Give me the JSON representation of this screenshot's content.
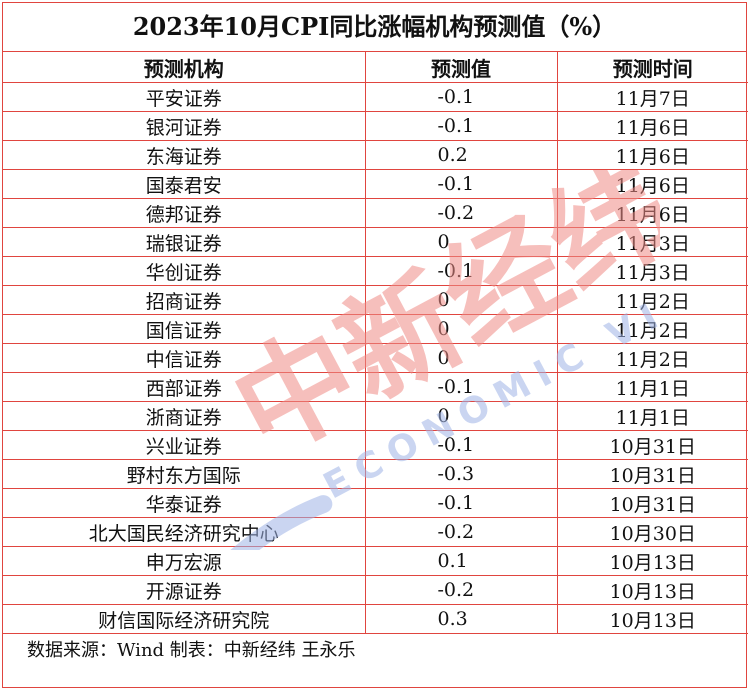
{
  "title": "2023年10月CPI同比涨幅机构预测值（%）",
  "headers": [
    "预测机构",
    "预测值",
    "预测时间"
  ],
  "rows": [
    {
      "org": "平安证券",
      "value": "-0.1",
      "date": "11月7日"
    },
    {
      "org": "银河证券",
      "value": "-0.1",
      "date": "11月6日"
    },
    {
      "org": "东海证券",
      "value": "0.2",
      "date": "11月6日"
    },
    {
      "org": "国泰君安",
      "value": "-0.1",
      "date": "11月6日"
    },
    {
      "org": "德邦证券",
      "value": "-0.2",
      "date": "11月6日"
    },
    {
      "org": "瑞银证券",
      "value": "0",
      "date": "11月3日"
    },
    {
      "org": "华创证券",
      "value": "-0.1",
      "date": "11月3日"
    },
    {
      "org": "招商证券",
      "value": "0",
      "date": "11月2日"
    },
    {
      "org": "国信证券",
      "value": "0",
      "date": "11月2日"
    },
    {
      "org": "中信证券",
      "value": "0",
      "date": "11月2日"
    },
    {
      "org": "西部证券",
      "value": "-0.1",
      "date": "11月1日"
    },
    {
      "org": "浙商证券",
      "value": "0",
      "date": "11月1日"
    },
    {
      "org": "兴业证券",
      "value": "-0.1",
      "date": "10月31日"
    },
    {
      "org": "野村东方国际",
      "value": "-0.3",
      "date": "10月31日"
    },
    {
      "org": "华泰证券",
      "value": "-0.1",
      "date": "10月31日"
    },
    {
      "org": "北大国民经济研究中心",
      "value": "-0.2",
      "date": "10月30日"
    },
    {
      "org": "申万宏源",
      "value": "0.1",
      "date": "10月13日"
    },
    {
      "org": "开源证券",
      "value": "-0.2",
      "date": "10月13日"
    },
    {
      "org": "财信国际经济研究院",
      "value": "0.3",
      "date": "10月13日"
    }
  ],
  "footer": "数据来源：Wind 制表：中新经纬 王永乐",
  "watermark": {
    "cn": "中新经纬",
    "en": "ECONOMIC VIEW"
  },
  "colors": {
    "border": "#e0453f",
    "watermark_red": "#f08c86",
    "watermark_blue": "#9fb4e6"
  }
}
